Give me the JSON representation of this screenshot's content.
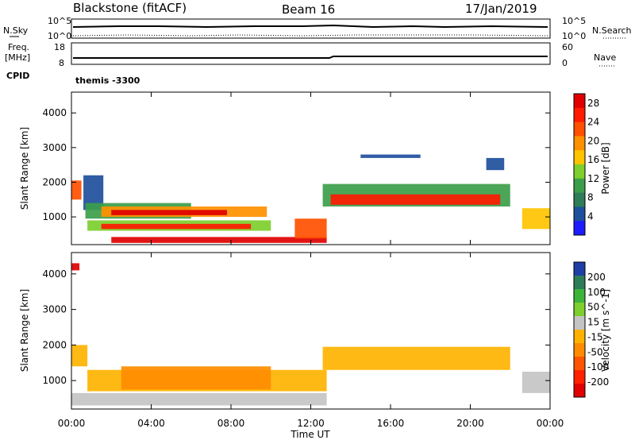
{
  "header": {
    "station": "Blackstone (fitACF)",
    "beam": "Beam 16",
    "date": "17/Jan/2019"
  },
  "noise_panel": {
    "left_label": "N.Sky",
    "right_label": "N.Search",
    "ticks": [
      "10^5",
      "10^0"
    ]
  },
  "freq_panel": {
    "left_label_1": "Freq.",
    "left_label_2": "[MHz]",
    "right_label": "Nave",
    "left_ticks": [
      "18",
      "8"
    ],
    "right_ticks": [
      "60",
      "0"
    ]
  },
  "cpid_panel": {
    "left_label": "CPID",
    "value": "themis -3300"
  },
  "colors": {
    "power_scale": [
      "#1c1cff",
      "#1e4f9c",
      "#2e7d58",
      "#3c9e4a",
      "#7ccf2c",
      "#ffc300",
      "#ff9000",
      "#ff5000",
      "#ff1a00",
      "#e00000"
    ],
    "velocity_scale": [
      "#1e3fa6",
      "#2e7d58",
      "#3cb43c",
      "#7ccf2c",
      "#c4c4c4",
      "#ffb300",
      "#ff8c00",
      "#ff5500",
      "#ff2000",
      "#e00000"
    ]
  },
  "chart_data": [
    {
      "type": "heatmap",
      "title": "",
      "xlabel": "Time UT",
      "ylabel": "Slant Range [km]",
      "x_ticks": [
        "00:00",
        "04:00",
        "08:00",
        "12:00",
        "16:00",
        "20:00",
        "00:00"
      ],
      "y_ticks": [
        "1000",
        "2000",
        "3000",
        "4000"
      ],
      "ylim": [
        200,
        4600
      ],
      "xlim_hours": [
        0,
        24
      ],
      "colorbar": {
        "label": "Power [dB]",
        "ticks": [
          "4",
          "8",
          "12",
          "16",
          "20",
          "24",
          "28"
        ],
        "range": [
          0,
          30
        ]
      },
      "regions": [
        {
          "t0": 0.0,
          "t1": 0.5,
          "r0": 1500,
          "r1": 2050,
          "value": 22
        },
        {
          "t0": 0.6,
          "t1": 1.6,
          "r0": 1200,
          "r1": 2200,
          "value": 5
        },
        {
          "t0": 0.7,
          "t1": 6.0,
          "r0": 950,
          "r1": 1400,
          "value": 9
        },
        {
          "t0": 1.5,
          "t1": 9.8,
          "r0": 1000,
          "r1": 1300,
          "value": 18
        },
        {
          "t0": 2.0,
          "t1": 7.8,
          "r0": 1050,
          "r1": 1200,
          "value": 27
        },
        {
          "t0": 0.8,
          "t1": 10.0,
          "r0": 600,
          "r1": 900,
          "value": 14
        },
        {
          "t0": 1.5,
          "t1": 9.0,
          "r0": 650,
          "r1": 800,
          "value": 24
        },
        {
          "t0": 2.0,
          "t1": 12.8,
          "r0": 250,
          "r1": 420,
          "value": 28
        },
        {
          "t0": 11.2,
          "t1": 12.8,
          "r0": 380,
          "r1": 950,
          "value": 22
        },
        {
          "t0": 12.6,
          "t1": 22.0,
          "r0": 1300,
          "r1": 1950,
          "value": 10
        },
        {
          "t0": 13.0,
          "t1": 21.5,
          "r0": 1350,
          "r1": 1650,
          "value": 26
        },
        {
          "t0": 14.5,
          "t1": 17.5,
          "r0": 2700,
          "r1": 2800,
          "value": 4
        },
        {
          "t0": 20.8,
          "t1": 21.7,
          "r0": 2350,
          "r1": 2700,
          "value": 5
        },
        {
          "t0": 22.6,
          "t1": 24.0,
          "r0": 650,
          "r1": 1250,
          "value": 16
        }
      ]
    },
    {
      "type": "heatmap",
      "title": "",
      "xlabel": "Time UT",
      "ylabel": "Slant Range [km]",
      "x_ticks": [
        "00:00",
        "04:00",
        "08:00",
        "12:00",
        "16:00",
        "20:00",
        "00:00"
      ],
      "y_ticks": [
        "1000",
        "2000",
        "3000",
        "4000"
      ],
      "ylim": [
        200,
        4600
      ],
      "xlim_hours": [
        0,
        24
      ],
      "colorbar": {
        "label": "Velocity [m s^-1]",
        "ticks": [
          "200",
          "100",
          "50",
          "15",
          "-15",
          "-50",
          "-100",
          "-200"
        ],
        "range": [
          -250,
          250
        ]
      },
      "regions": [
        {
          "t0": 0.0,
          "t1": 0.8,
          "r0": 1400,
          "r1": 2000,
          "value": 0
        },
        {
          "t0": 0.8,
          "t1": 12.8,
          "r0": 700,
          "r1": 1300,
          "value": 0
        },
        {
          "t0": 2.5,
          "t1": 10.0,
          "r0": 750,
          "r1": 1400,
          "value": -60
        },
        {
          "t0": 0.0,
          "t1": 12.8,
          "r0": 300,
          "r1": 650,
          "value": 40
        },
        {
          "t0": 12.6,
          "t1": 22.0,
          "r0": 1300,
          "r1": 1950,
          "value": 0
        },
        {
          "t0": 22.6,
          "t1": 24.0,
          "r0": 650,
          "r1": 1250,
          "value": 40
        },
        {
          "t0": 0.0,
          "t1": 0.4,
          "r0": 4100,
          "r1": 4300,
          "value": -200
        }
      ]
    }
  ]
}
